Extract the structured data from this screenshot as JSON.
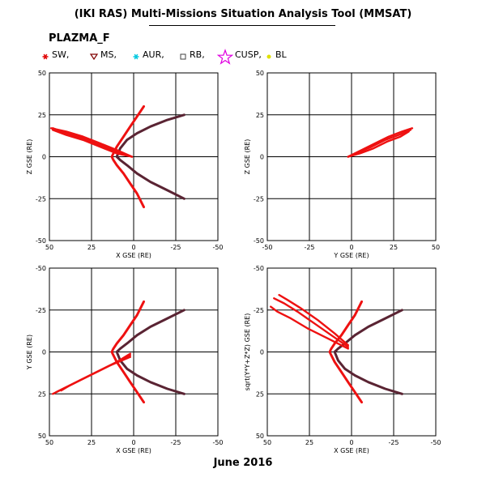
{
  "title": "(IKI RAS) Multi-Missions Situation Analysis Tool (MMSAT)",
  "instrument": "PLAZMA_F",
  "footer_date": "June 2016",
  "legend": [
    {
      "label": "SW,",
      "symbol": "star6",
      "color": "#e00000"
    },
    {
      "label": "MS,",
      "symbol": "triangle-down",
      "color": "#800000"
    },
    {
      "label": "AUR,",
      "symbol": "asterisk",
      "color": "#00c8e0"
    },
    {
      "label": "RB,",
      "symbol": "square",
      "color": "#404040"
    },
    {
      "label": "CUSP,",
      "symbol": "star5",
      "color": "#e000e0"
    },
    {
      "label": "BL",
      "symbol": "dot",
      "color": "#e0e000"
    }
  ],
  "colors": {
    "orbit": "#ee1111",
    "magnetopause": "#5a2433",
    "grid": "#000000"
  },
  "chart_data": [
    {
      "type": "line",
      "panel": "XZ",
      "xlabel": "X GSE (RE)",
      "ylabel": "Z GSE (RE)",
      "xlim": [
        50,
        -50
      ],
      "ylim": [
        -50,
        50
      ],
      "xticks": [
        50,
        25,
        0,
        -25,
        -50
      ],
      "yticks": [
        50,
        25,
        0,
        -25,
        -50
      ],
      "xtick_labels": [
        "50",
        "25",
        "0",
        "-25",
        "-50"
      ],
      "ytick_labels": [
        "50",
        "25",
        "0",
        "-25",
        "-50"
      ],
      "grid": true,
      "series": [
        {
          "role": "magnetopause",
          "x": [
            -30,
            -20,
            -10,
            -2,
            4,
            8,
            10,
            8,
            4,
            -2,
            -10,
            -20,
            -30
          ],
          "y": [
            -25,
            -20,
            -15,
            -10,
            -5,
            -2,
            0,
            5,
            10,
            14,
            18,
            22,
            25
          ]
        },
        {
          "role": "bow-shock",
          "x": [
            -6,
            -2,
            2,
            6,
            10,
            12,
            13,
            12,
            10,
            6,
            2,
            -2,
            -6
          ],
          "y": [
            -30,
            -22,
            -16,
            -10,
            -5,
            -2,
            0,
            2,
            6,
            12,
            18,
            24,
            30
          ]
        },
        {
          "role": "orbit",
          "x": [
            1,
            10,
            20,
            30,
            40,
            48
          ],
          "y": [
            0,
            3,
            7,
            11,
            14,
            17
          ]
        },
        {
          "role": "orbit",
          "x": [
            1,
            10,
            20,
            30,
            40,
            49
          ],
          "y": [
            0,
            4,
            8,
            12,
            15,
            17
          ]
        },
        {
          "role": "orbit",
          "x": [
            1,
            10,
            20,
            30,
            40,
            48
          ],
          "y": [
            0,
            2,
            6,
            10,
            13,
            16
          ]
        }
      ]
    },
    {
      "type": "line",
      "panel": "YZ",
      "xlabel": "Y GSE (RE)",
      "ylabel": "Z GSE (RE)",
      "xlim": [
        -50,
        50
      ],
      "ylim": [
        -50,
        50
      ],
      "xticks": [
        -50,
        -25,
        0,
        25,
        50
      ],
      "yticks": [
        50,
        25,
        0,
        -25,
        -50
      ],
      "xtick_labels": [
        "-50",
        "-25",
        "0",
        "25",
        "50"
      ],
      "ytick_labels": [
        "50",
        "25",
        "0",
        "-25",
        "-50"
      ],
      "grid": true,
      "series": [
        {
          "role": "orbit",
          "x": [
            -2,
            5,
            12,
            20,
            28,
            35
          ],
          "y": [
            0,
            3,
            6,
            10,
            13,
            16
          ]
        },
        {
          "role": "orbit",
          "x": [
            -2,
            6,
            14,
            22,
            30,
            36
          ],
          "y": [
            0,
            4,
            8,
            12,
            15,
            17
          ]
        },
        {
          "role": "orbit",
          "x": [
            -2,
            5,
            13,
            21,
            29,
            34
          ],
          "y": [
            0,
            2,
            5,
            9,
            12,
            15
          ]
        }
      ]
    },
    {
      "type": "line",
      "panel": "XY",
      "xlabel": "X GSE (RE)",
      "ylabel": "Y GSE (RE)",
      "xlim": [
        50,
        -50
      ],
      "ylim": [
        50,
        -50
      ],
      "xticks": [
        50,
        25,
        0,
        -25,
        -50
      ],
      "yticks": [
        -50,
        -25,
        0,
        25,
        50
      ],
      "xtick_labels": [
        "50",
        "25",
        "0",
        "-25",
        "-50"
      ],
      "ytick_labels": [
        "-50",
        "-25",
        "0",
        "25",
        "50"
      ],
      "grid": true,
      "series": [
        {
          "role": "magnetopause",
          "x": [
            -30,
            -20,
            -10,
            -2,
            4,
            8,
            10,
            8,
            4,
            -2,
            -10,
            -20,
            -30
          ],
          "y": [
            -25,
            -20,
            -15,
            -10,
            -5,
            -2,
            0,
            5,
            10,
            14,
            18,
            22,
            25
          ]
        },
        {
          "role": "bow-shock",
          "x": [
            -6,
            -2,
            2,
            6,
            10,
            12,
            13,
            12,
            10,
            6,
            2,
            -2,
            -6
          ],
          "y": [
            -30,
            -22,
            -16,
            -10,
            -5,
            -2,
            0,
            2,
            6,
            12,
            18,
            24,
            30
          ]
        },
        {
          "role": "orbit",
          "x": [
            2,
            12,
            22,
            32,
            40,
            46
          ],
          "y": [
            2,
            7,
            12,
            17,
            21,
            24
          ]
        },
        {
          "role": "orbit",
          "x": [
            2,
            14,
            26,
            36,
            44,
            48
          ],
          "y": [
            3,
            8,
            14,
            19,
            23,
            25
          ]
        },
        {
          "role": "orbit",
          "x": [
            2,
            10,
            20,
            30,
            38,
            43
          ],
          "y": [
            1,
            6,
            11,
            16,
            20,
            23
          ]
        }
      ]
    },
    {
      "type": "line",
      "panel": "X-R",
      "xlabel": "X GSE (RE)",
      "ylabel": "sqrt(Y*Y+Z*Z) GSE (RE)",
      "xlim": [
        50,
        -50
      ],
      "ylim": [
        50,
        -50
      ],
      "xticks": [
        50,
        25,
        0,
        -25,
        -50
      ],
      "yticks": [
        -50,
        -25,
        0,
        25,
        50
      ],
      "xtick_labels": [
        "50",
        "25",
        "0",
        "-25",
        "-50"
      ],
      "ytick_labels": [
        "-50",
        "-25",
        "0",
        "25",
        "50"
      ],
      "grid": true,
      "series": [
        {
          "role": "magnetopause",
          "x": [
            -30,
            -20,
            -10,
            -2,
            4,
            8,
            10,
            8,
            4,
            -2,
            -10,
            -20,
            -30
          ],
          "y": [
            -25,
            -20,
            -15,
            -10,
            -5,
            -2,
            0,
            5,
            10,
            14,
            18,
            22,
            25
          ]
        },
        {
          "role": "bow-shock",
          "x": [
            -6,
            -2,
            2,
            6,
            10,
            12,
            13,
            12,
            10,
            6,
            2,
            -2,
            -6
          ],
          "y": [
            -30,
            -22,
            -16,
            -10,
            -5,
            -2,
            0,
            2,
            6,
            12,
            18,
            24,
            30
          ]
        },
        {
          "role": "orbit",
          "x": [
            2,
            12,
            22,
            32,
            40,
            46
          ],
          "y": [
            -3,
            -10,
            -17,
            -24,
            -29,
            -32
          ]
        },
        {
          "role": "orbit",
          "x": [
            2,
            14,
            26,
            36,
            44,
            48
          ],
          "y": [
            -2,
            -8,
            -14,
            -20,
            -24,
            -27
          ]
        },
        {
          "role": "orbit",
          "x": [
            2,
            10,
            20,
            30,
            38,
            43
          ],
          "y": [
            -4,
            -11,
            -19,
            -26,
            -31,
            -34
          ]
        }
      ]
    }
  ]
}
